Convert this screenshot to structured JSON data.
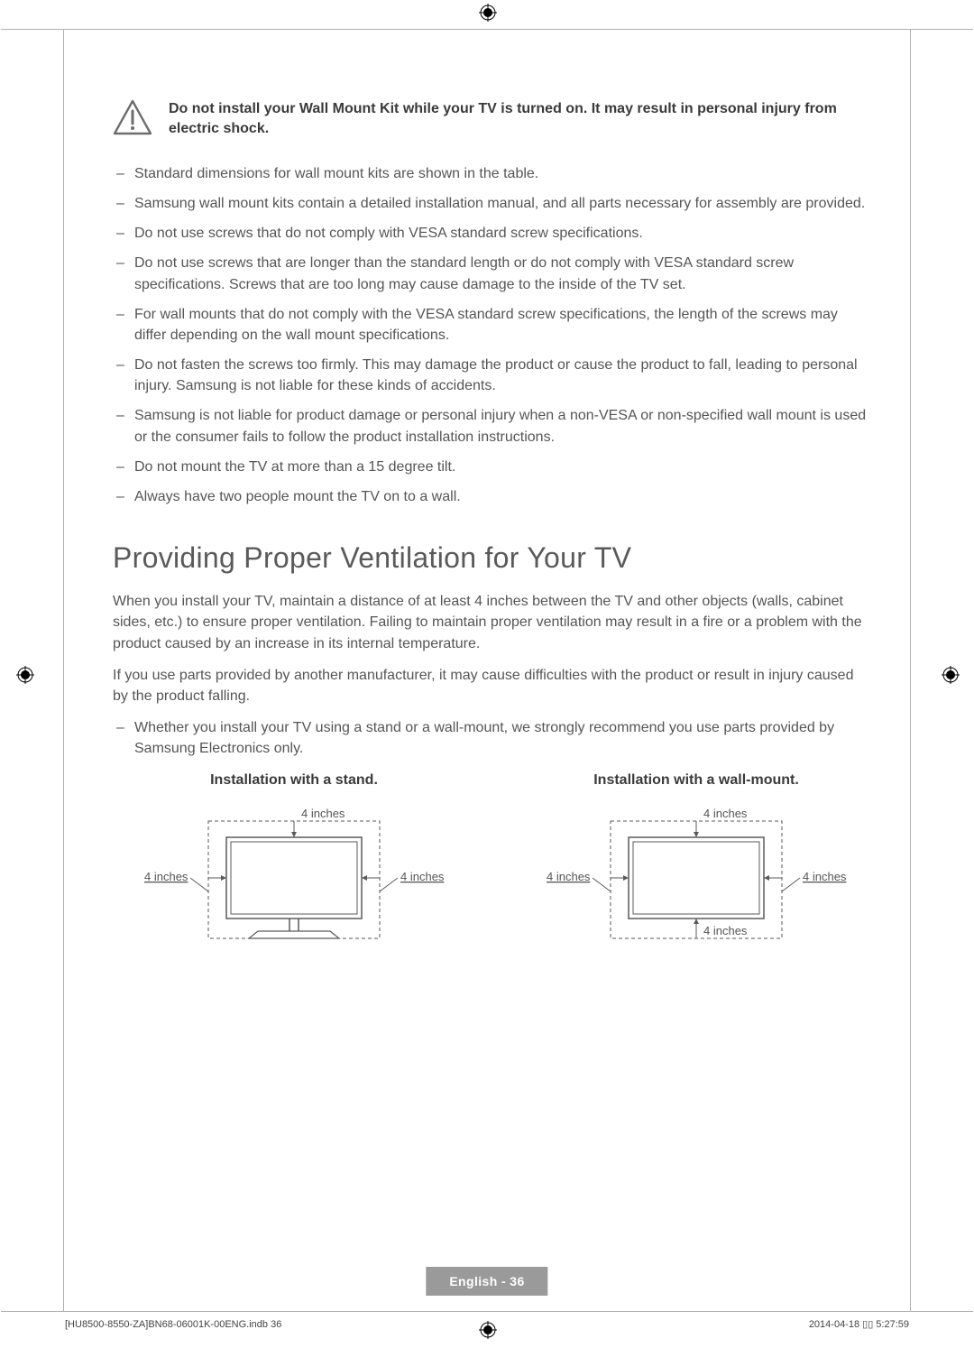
{
  "warning": {
    "text": "Do not install your Wall Mount Kit while your TV is turned on. It may result in personal injury from electric shock.",
    "icon_stroke": "#6d6d6d"
  },
  "bullets_top": [
    "Standard dimensions for wall mount kits are shown in the table.",
    "Samsung wall mount kits contain a detailed installation manual, and all parts necessary for assembly are provided.",
    "Do not use screws that do not comply with VESA standard screw specifications.",
    "Do not use screws that are longer than the standard length or do not comply with VESA standard screw specifications. Screws that are too long may cause damage to the inside of the TV set.",
    "For wall mounts that do not comply with the VESA standard screw specifications, the length of the screws may differ depending on the wall mount specifications.",
    "Do not fasten the screws too firmly. This may damage the product or cause the product to fall, leading to personal injury. Samsung is not liable for these kinds of accidents.",
    "Samsung is not liable for product damage or personal injury when a non-VESA or non-specified wall mount is used or the consumer fails to follow the product installation instructions.",
    "Do not mount the TV at more than a 15 degree tilt.",
    "Always have two people mount the TV on to a wall."
  ],
  "section_heading": "Providing Proper Ventilation for Your TV",
  "para1": "When you install your TV, maintain a distance of at least 4 inches between the TV and other objects (walls, cabinet sides, etc.) to ensure proper ventilation. Failing to maintain proper ventilation may result in a fire or a problem with the product caused by an increase in its internal temperature.",
  "para2": "If you use parts provided by another manufacturer, it may cause difficulties with the product or result in injury caused by the product falling.",
  "bullets_bottom": [
    "Whether you install your TV using a stand or a wall-mount, we strongly recommend you use parts provided by Samsung Electronics only."
  ],
  "diagrams": {
    "stand_title": "Installation with a stand.",
    "wall_title": "Installation with a wall-mount.",
    "label_top": "4 inches",
    "label_left": "4 inches",
    "label_right": "4 inches",
    "label_bottom": "4 inches",
    "stroke": "#5a5a5a",
    "dash": "4,3",
    "label_fontsize": 13,
    "label_color": "#555555"
  },
  "footer": {
    "tag": "English - 36",
    "meta_left": "[HU8500-8550-ZA]BN68-06001K-00ENG.indb   36",
    "meta_right": "2014-04-18   ▯▯ 5:27:59"
  },
  "colors": {
    "text": "#555555",
    "heading": "#5a5a5a",
    "strong": "#3a3a3a",
    "footer_bg": "#9a9a9a",
    "footer_fg": "#ffffff",
    "frame": "#b0b0b0"
  }
}
